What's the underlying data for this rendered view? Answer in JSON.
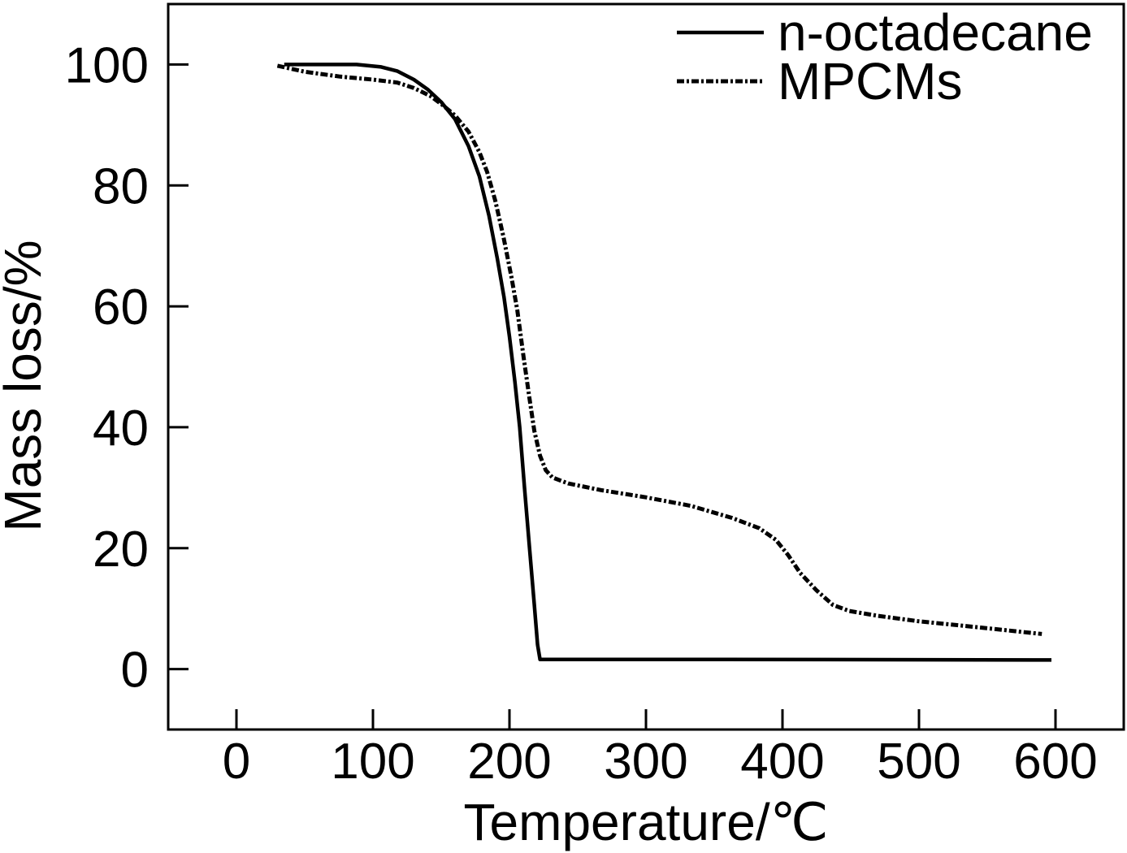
{
  "chart_data": {
    "type": "line",
    "xlabel": "Temperature/℃",
    "ylabel": "Mass loss/%",
    "xlim": [
      -50,
      650
    ],
    "ylim": [
      -10,
      110
    ],
    "xticks": [
      0,
      100,
      200,
      300,
      400,
      500,
      600
    ],
    "yticks": [
      0,
      20,
      40,
      60,
      80,
      100
    ],
    "grid": false,
    "legend": {
      "position": "top-right"
    },
    "series": [
      {
        "name": "n-octadecane",
        "color": "#000000",
        "x": [
          35,
          88,
          106,
          118,
          130,
          140,
          150,
          160,
          170,
          178,
          185,
          191,
          196,
          200,
          204,
          207.5,
          211,
          214.7,
          218.2,
          220.6,
          222.4,
          350,
          597
        ],
        "y": [
          100,
          100,
          99.6,
          98.9,
          97.5,
          95.9,
          93.8,
          91,
          86.5,
          81.5,
          75,
          68,
          61.5,
          55,
          47.5,
          40,
          30,
          20,
          10.6,
          4,
          1.6,
          1.6,
          1.5
        ]
      },
      {
        "name": "MPCMs",
        "color": "#000000",
        "x": [
          30,
          50,
          76,
          100,
          118,
          130,
          142,
          151,
          160,
          170,
          178,
          183.7,
          189.6,
          195.6,
          201.5,
          205.7,
          210.5,
          214.7,
          218.2,
          222.4,
          226.6,
          231.4,
          243,
          267,
          300,
          333,
          363,
          383,
          395,
          404,
          413,
          425,
          437,
          449,
          470,
          500,
          535,
          565,
          590
        ],
        "y": [
          99.8,
          98.8,
          98,
          97.5,
          97,
          96.1,
          94.8,
          93.3,
          91.6,
          88.9,
          85.5,
          82.2,
          77.5,
          71.5,
          64.8,
          59.4,
          51.4,
          44.7,
          39.4,
          35.3,
          32.9,
          31.7,
          30.7,
          29.6,
          28.4,
          27,
          25,
          23.3,
          21.4,
          18.9,
          15.9,
          13,
          10.6,
          9.6,
          8.8,
          7.9,
          7.1,
          6.4,
          5.8
        ]
      }
    ]
  }
}
